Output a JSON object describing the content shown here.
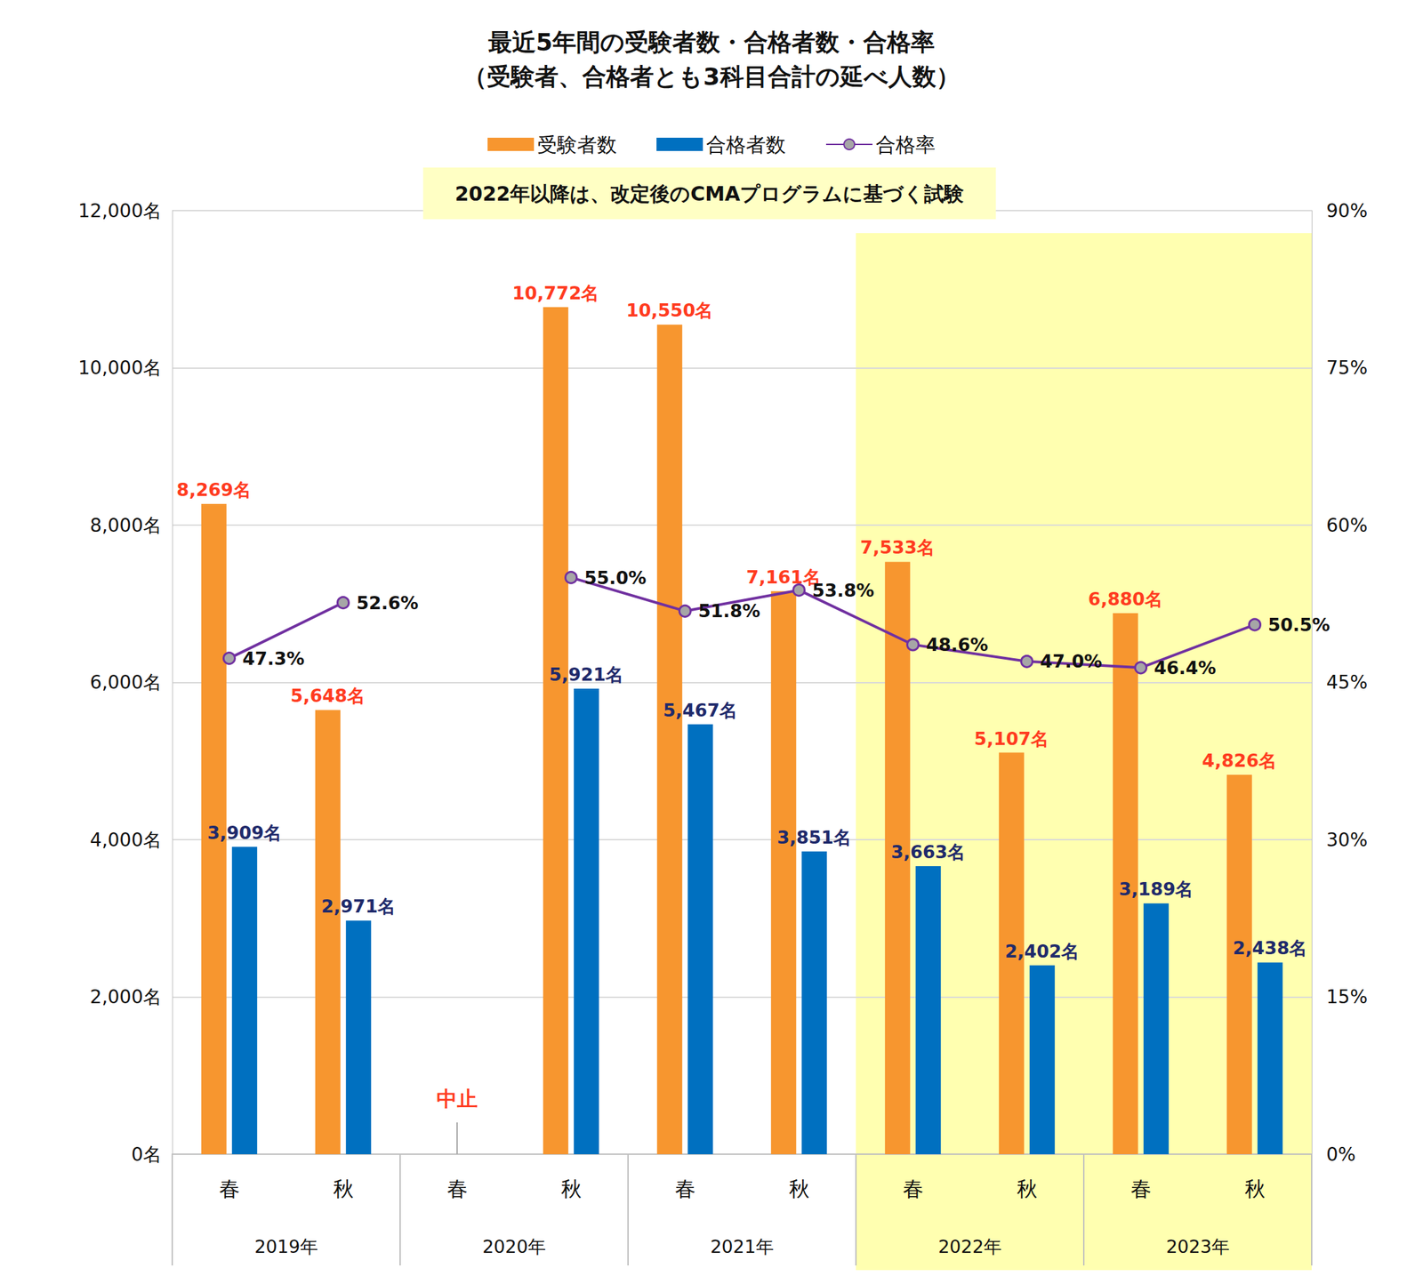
{
  "chart_data": {
    "type": "bar",
    "title": "最近5年間の受験者数・合格者数・合格率",
    "subtitle": "（受験者、合格者とも3科目合計の延べ人数）",
    "categories": [
      "春",
      "秋",
      "春",
      "秋",
      "春",
      "秋",
      "春",
      "秋",
      "春",
      "秋"
    ],
    "category_groups": [
      "2019年",
      "2020年",
      "2021年",
      "2022年",
      "2023年"
    ],
    "series": [
      {
        "name": "受験者数",
        "type": "bar",
        "color": "#F7962F",
        "values": [
          8269,
          5648,
          null,
          10772,
          10550,
          7161,
          7533,
          5107,
          6880,
          4826
        ],
        "value_labels": [
          "8,269名",
          "5,648名",
          null,
          "10,772名",
          "10,550名",
          "7,161名",
          "7,533名",
          "5,107名",
          "6,880名",
          "4,826名"
        ]
      },
      {
        "name": "合格者数",
        "type": "bar",
        "color": "#0070C0",
        "values": [
          3909,
          2971,
          null,
          5921,
          5467,
          3851,
          3663,
          2402,
          3189,
          2438
        ],
        "value_labels": [
          "3,909名",
          "2,971名",
          null,
          "5,921名",
          "5,467名",
          "3,851名",
          "3,663名",
          "2,402名",
          "3,189名",
          "2,438名"
        ]
      },
      {
        "name": "合格率",
        "type": "line",
        "axis": "y2",
        "color": "#7030A0",
        "marker": "circle",
        "values": [
          47.3,
          52.6,
          null,
          55.0,
          51.8,
          53.8,
          48.6,
          47.0,
          46.4,
          50.5
        ],
        "value_labels": [
          "47.3%",
          "52.6%",
          null,
          "55.0%",
          "51.8%",
          "53.8%",
          "48.6%",
          "47.0%",
          "46.4%",
          "50.5%"
        ]
      }
    ],
    "ylim": [
      0,
      12000
    ],
    "yticks": [
      {
        "value": 0,
        "label": "0名"
      },
      {
        "value": 2000,
        "label": "2,000名"
      },
      {
        "value": 4000,
        "label": "4,000名"
      },
      {
        "value": 6000,
        "label": "6,000名"
      },
      {
        "value": 8000,
        "label": "8,000名"
      },
      {
        "value": 10000,
        "label": "10,000名"
      },
      {
        "value": 12000,
        "label": "12,000名"
      }
    ],
    "y2lim": [
      0,
      90
    ],
    "y2ticks": [
      {
        "value": 0,
        "label": "0%"
      },
      {
        "value": 15,
        "label": "15%"
      },
      {
        "value": 30,
        "label": "30%"
      },
      {
        "value": 45,
        "label": "45%"
      },
      {
        "value": 60,
        "label": "60%"
      },
      {
        "value": 75,
        "label": "75%"
      },
      {
        "value": 90,
        "label": "90%"
      }
    ],
    "annotation": {
      "text": "2022年以降は、改定後のCMAプログラムに基づく試験",
      "from_group": "2022年"
    },
    "missing_label": "中止",
    "data_labels": true,
    "grid": true,
    "legend": "top"
  }
}
